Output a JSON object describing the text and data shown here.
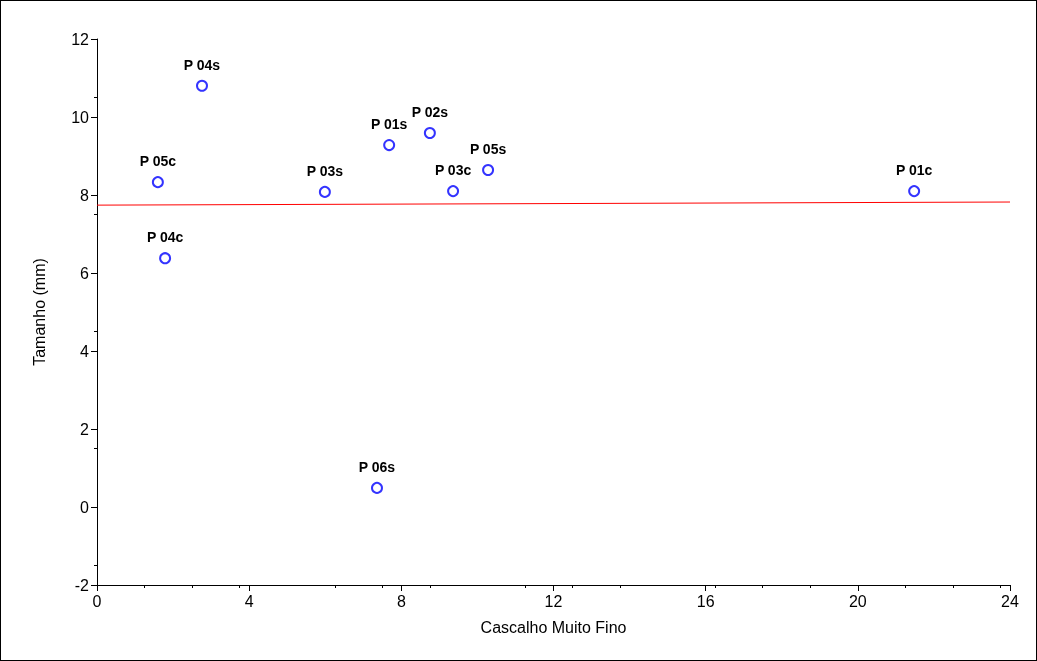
{
  "chart_data": {
    "type": "scatter",
    "xlabel": "Cascalho Muito Fino",
    "ylabel": "Tamanho (mm)",
    "xlim": [
      0,
      24
    ],
    "xticks": [
      0,
      4,
      8,
      12,
      16,
      20,
      24
    ],
    "ylim": [
      -2,
      12
    ],
    "yticks": [
      -2,
      0,
      2,
      4,
      6,
      8,
      10,
      12
    ],
    "grid": false,
    "marker": "circle",
    "series": [
      {
        "color": "#0000ff",
        "x": [
          2.76,
          1.6,
          1.79,
          5.99,
          7.36,
          7.68,
          8.75,
          9.36,
          10.28,
          21.48
        ],
        "values": [
          10.8,
          8.33,
          6.38,
          8.08,
          0.49,
          9.28,
          9.59,
          8.1,
          8.64,
          8.1
        ]
      },
      {
        "type": "line",
        "color": "#ff0000",
        "marker": "none",
        "line_style": "solid",
        "x": [
          0,
          24
        ],
        "values": [
          7.74,
          7.82
        ]
      }
    ],
    "annotations": [
      {
        "text": "P 04s",
        "x": 2.76,
        "y": 10.8
      },
      {
        "text": "P 05c",
        "x": 1.6,
        "y": 8.33
      },
      {
        "text": "P 04c",
        "x": 1.79,
        "y": 6.38
      },
      {
        "text": "P 03s",
        "x": 5.99,
        "y": 8.08
      },
      {
        "text": "P 06s",
        "x": 7.36,
        "y": 0.49
      },
      {
        "text": "P 01s",
        "x": 7.68,
        "y": 9.28
      },
      {
        "text": "P 02s",
        "x": 8.75,
        "y": 9.59
      },
      {
        "text": "P 03c",
        "x": 9.36,
        "y": 8.1
      },
      {
        "text": "P 05s",
        "x": 10.28,
        "y": 8.64
      },
      {
        "text": "P 01c",
        "x": 21.48,
        "y": 8.1
      }
    ]
  }
}
